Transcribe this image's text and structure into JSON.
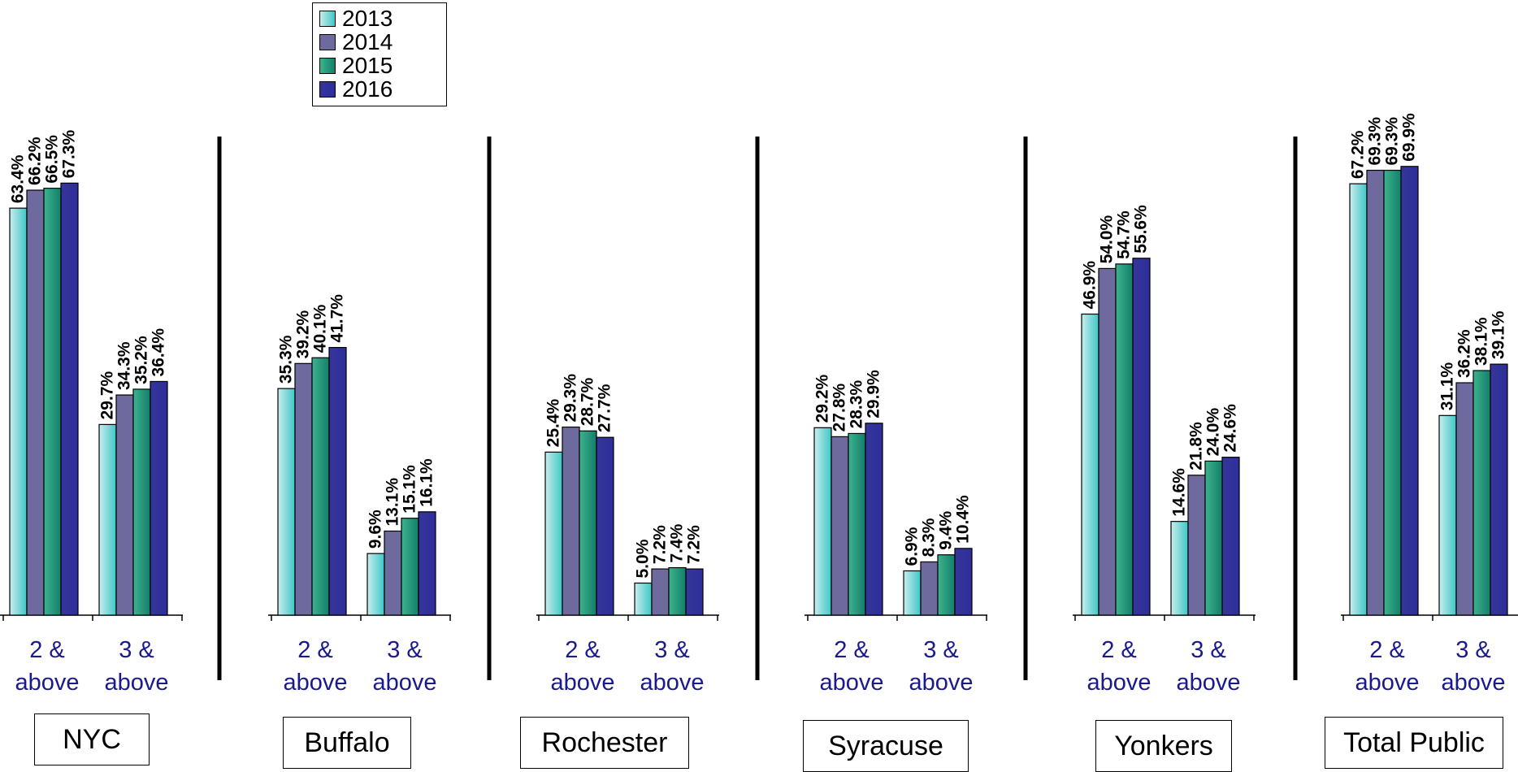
{
  "legend": [
    "2013",
    "2014",
    "2015",
    "2016"
  ],
  "colors": {
    "2013": [
      "#c8ecec",
      "#3ec7c7"
    ],
    "2014": [
      "#6e6a9e",
      "#6e6a9e"
    ],
    "2015": [
      "#3db38e",
      "#137f6a"
    ],
    "2016": [
      "#35359b",
      "#2e2e9a"
    ]
  },
  "groups": [
    {
      "name": "NYC",
      "categories": [
        "2 &\nabove",
        "3 &\nabove"
      ]
    },
    {
      "name": "Buffalo",
      "categories": [
        "2 &\nabove",
        "3 &\nabove"
      ]
    },
    {
      "name": "Rochester",
      "categories": [
        "2 &\nabove",
        "3 &\nabove"
      ]
    },
    {
      "name": "Syracuse",
      "categories": [
        "2 &\nabove",
        "3 &\nabove"
      ]
    },
    {
      "name": "Yonkers",
      "categories": [
        "2 &\nabove",
        "3 &\nabove"
      ]
    },
    {
      "name": "Total Public",
      "categories": [
        "2 &\nabove",
        "3 &\nabove"
      ]
    }
  ],
  "chart_data": {
    "type": "bar",
    "categories": [
      "2 & above",
      "3 & above"
    ],
    "groups": [
      "NYC",
      "Buffalo",
      "Rochester",
      "Syracuse",
      "Yonkers",
      "Total Public"
    ],
    "series": [
      {
        "name": "2013",
        "values": [
          [
            63.4,
            29.7
          ],
          [
            35.3,
            9.6
          ],
          [
            25.4,
            5.0
          ],
          [
            29.2,
            6.9
          ],
          [
            46.9,
            14.6
          ],
          [
            67.2,
            31.1
          ]
        ]
      },
      {
        "name": "2014",
        "values": [
          [
            66.2,
            34.3
          ],
          [
            39.2,
            13.1
          ],
          [
            29.3,
            7.2
          ],
          [
            27.8,
            8.3
          ],
          [
            54.0,
            21.8
          ],
          [
            69.3,
            36.2
          ]
        ]
      },
      {
        "name": "2015",
        "values": [
          [
            66.5,
            35.2
          ],
          [
            40.1,
            15.1
          ],
          [
            28.7,
            7.4
          ],
          [
            28.3,
            9.4
          ],
          [
            54.7,
            24.0
          ],
          [
            69.3,
            38.1
          ]
        ]
      },
      {
        "name": "2016",
        "values": [
          [
            67.3,
            36.4
          ],
          [
            41.7,
            16.1
          ],
          [
            27.7,
            7.2
          ],
          [
            29.9,
            10.4
          ],
          [
            55.6,
            24.6
          ],
          [
            69.9,
            39.1
          ]
        ]
      }
    ],
    "value_labels": [
      [
        [
          "63.4%",
          "66.2%",
          "66.5%",
          "67.3%"
        ],
        [
          "29.7%",
          "34.3%",
          "35.2%",
          "36.4%"
        ]
      ],
      [
        [
          "35.3%",
          "39.2%",
          "40.1%",
          "41.7%"
        ],
        [
          "9.6%",
          "13.1%",
          "15.1%",
          "16.1%"
        ]
      ],
      [
        [
          "25.4%",
          "29.3%",
          "28.7%",
          "27.7%"
        ],
        [
          "5.0%",
          "7.2%",
          "7.4%",
          "7.2%"
        ]
      ],
      [
        [
          "29.2%",
          "27.8%",
          "28.3%",
          "29.9%"
        ],
        [
          "6.9%",
          "8.3%",
          "9.4%",
          "10.4%"
        ]
      ],
      [
        [
          "46.9%",
          "54.0%",
          "54.7%",
          "55.6%"
        ],
        [
          "14.6%",
          "21.8%",
          "24.0%",
          "24.6%"
        ]
      ],
      [
        [
          "67.2%",
          "69.3%",
          "69.3%",
          "69.9%"
        ],
        [
          "31.1%",
          "36.2%",
          "38.1%",
          "39.1%"
        ]
      ]
    ],
    "ylim": [
      0,
      100
    ],
    "grid": false,
    "legend_position": "top"
  }
}
